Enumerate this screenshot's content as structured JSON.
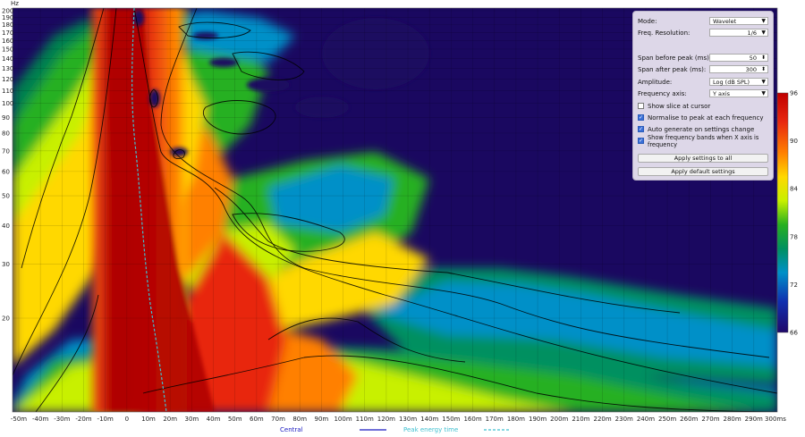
{
  "plot": {
    "freq_unit": "Hz",
    "y_ticks": [
      "200",
      "190",
      "180",
      "170",
      "160",
      "150",
      "140",
      "130",
      "120",
      "110",
      "100",
      "90",
      "80",
      "70",
      "60",
      "50",
      "40",
      "30",
      "20"
    ],
    "x_ticks": [
      "-50m",
      "-40m",
      "-30m",
      "-20m",
      "-10m",
      "0",
      "10m",
      "20m",
      "30m",
      "40m",
      "50m",
      "60m",
      "70m",
      "80m",
      "90m",
      "100m",
      "110m",
      "120m",
      "130m",
      "140m",
      "150m",
      "160m",
      "170m",
      "180m",
      "190m",
      "200m",
      "210m",
      "220m",
      "230m",
      "240m",
      "250m",
      "260m",
      "270m",
      "280m",
      "290m",
      "300ms"
    ],
    "scale_ticks": [
      "96",
      "90",
      "84",
      "78",
      "72",
      "66"
    ],
    "scale_colors": [
      "#c00000",
      "#e03010",
      "#ff7000",
      "#ffd000",
      "#d8f000",
      "#20b020",
      "#008050",
      "#0080c0",
      "#1020a0",
      "#1a0860"
    ],
    "background": "#1a0860"
  },
  "legend": {
    "central_label": "Central",
    "central_color": "#1a1ac0",
    "peak_label": "Peak energy time",
    "peak_color": "#40c0d0"
  },
  "settings": {
    "mode_label": "Mode:",
    "mode_value": "Wavelet",
    "freq_res_label": "Freq. Resolution:",
    "freq_res_value": "1/6",
    "span_before_label": "Span before peak (ms):",
    "span_before_value": "50",
    "span_after_label": "Span after peak (ms):",
    "span_after_value": "300",
    "amplitude_label": "Amplitude:",
    "amplitude_value": "Log (dB SPL)",
    "freq_axis_label": "Frequency axis:",
    "freq_axis_value": "Y axis",
    "show_slice_label": "Show slice at cursor",
    "show_slice_checked": false,
    "normalise_label": "Normalise to peak at each frequency",
    "normalise_checked": true,
    "auto_generate_label": "Auto generate on settings change",
    "auto_generate_checked": true,
    "show_bands_label": "Show frequency bands when X axis is frequency",
    "show_bands_checked": true,
    "apply_all_label": "Apply settings to all",
    "apply_default_label": "Apply default settings"
  }
}
